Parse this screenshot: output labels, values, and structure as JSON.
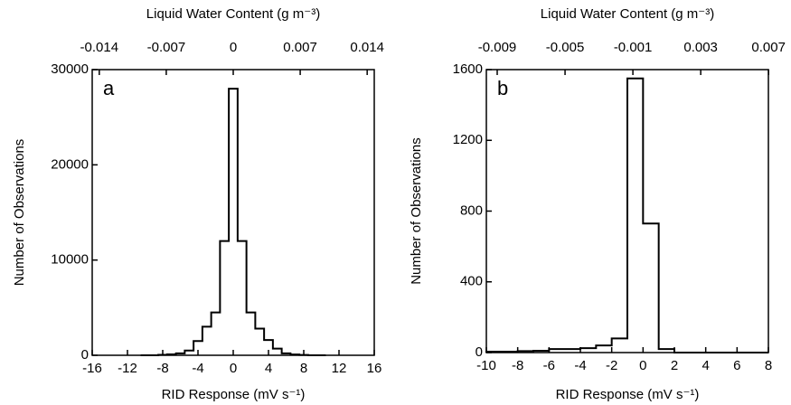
{
  "chart_data": [
    {
      "type": "histogram",
      "annotation": "a",
      "top_axis_label": "Liquid Water Content (g m⁻³)",
      "xlabel": "RID Response (mV s⁻¹)",
      "ylabel": "Number of Observations",
      "bins": [
        -10.5,
        -9.5,
        -8.5,
        -7.5,
        -6.5,
        -5.5,
        -4.5,
        -3.5,
        -2.5,
        -1.5,
        -0.5,
        0.5,
        1.5,
        2.5,
        3.5,
        4.5,
        5.5,
        6.5,
        7.5,
        8.5,
        9.5,
        10.5
      ],
      "values": [
        0,
        0,
        50,
        100,
        200,
        500,
        1500,
        3000,
        4500,
        12000,
        28000,
        12000,
        4500,
        2800,
        1600,
        700,
        200,
        80,
        30,
        0,
        0
      ],
      "color": "#000000",
      "xlim": [
        -16,
        16
      ],
      "xticks": [
        -16,
        -12,
        -8,
        -4,
        0,
        4,
        8,
        12,
        16
      ],
      "ylim": [
        0,
        30000
      ],
      "yticks": [
        0,
        10000,
        20000,
        30000
      ],
      "x2lim": [
        -0.01474,
        0.01474
      ],
      "x2ticks": [
        -0.014,
        -0.007,
        0,
        0.007,
        0.014
      ]
    },
    {
      "type": "histogram",
      "annotation": "b",
      "top_axis_label": "Liquid Water Content (g m⁻³)",
      "xlabel": "RID Response (mV s⁻¹)",
      "ylabel": "Number of Observations",
      "bins": [
        -10,
        -9,
        -8,
        -7,
        -6,
        -5,
        -4,
        -3,
        -2,
        -1,
        0,
        1,
        2,
        3,
        4,
        5,
        6,
        7,
        8
      ],
      "values": [
        5,
        5,
        8,
        10,
        20,
        20,
        25,
        40,
        80,
        1550,
        730,
        20,
        0,
        0,
        0,
        0,
        0,
        0
      ],
      "color": "#000000",
      "xlim": [
        -10,
        8
      ],
      "xticks": [
        -10,
        -8,
        -6,
        -4,
        -2,
        0,
        2,
        4,
        6,
        8
      ],
      "ylim": [
        0,
        1600
      ],
      "yticks": [
        0,
        400,
        800,
        1200,
        1600
      ],
      "x2lim": [
        -0.00964,
        0.00699
      ],
      "x2ticks": [
        -0.009,
        -0.005,
        -0.001,
        0.003,
        0.007
      ]
    }
  ]
}
